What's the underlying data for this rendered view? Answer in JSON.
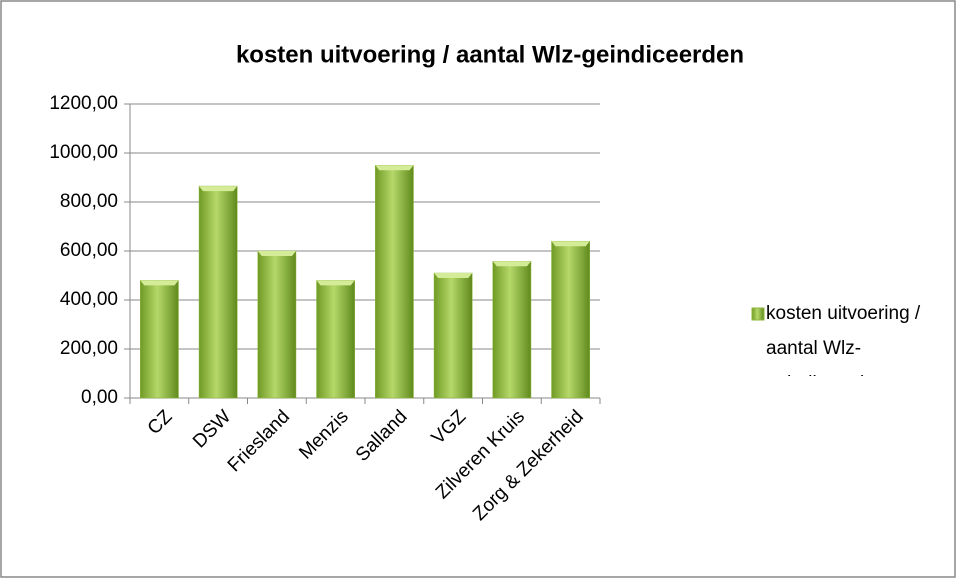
{
  "chart_data": {
    "type": "bar",
    "title": "kosten uitvoering / aantal Wlz-geindiceerden",
    "categories": [
      "CZ",
      "DSW",
      "Friesland",
      "Menzis",
      "Salland",
      "VGZ",
      "Zilveren Kruis",
      "Zorg & Zekerheid"
    ],
    "series": [
      {
        "name": "kosten uitvoering / aantal Wlz-geindiceerden",
        "color": "#8db53c",
        "values": [
          480,
          865,
          600,
          480,
          950,
          510,
          558,
          640
        ]
      }
    ],
    "ylim": [
      0,
      1200
    ],
    "yticks": [
      {
        "value": 0,
        "label": "0,00"
      },
      {
        "value": 200,
        "label": "200,00"
      },
      {
        "value": 400,
        "label": "400,00"
      },
      {
        "value": 600,
        "label": "600,00"
      },
      {
        "value": 800,
        "label": "800,00"
      },
      {
        "value": 1000,
        "label": "1000,00"
      },
      {
        "value": 1200,
        "label": "1200,00"
      }
    ],
    "grid": true,
    "legend": "right"
  }
}
